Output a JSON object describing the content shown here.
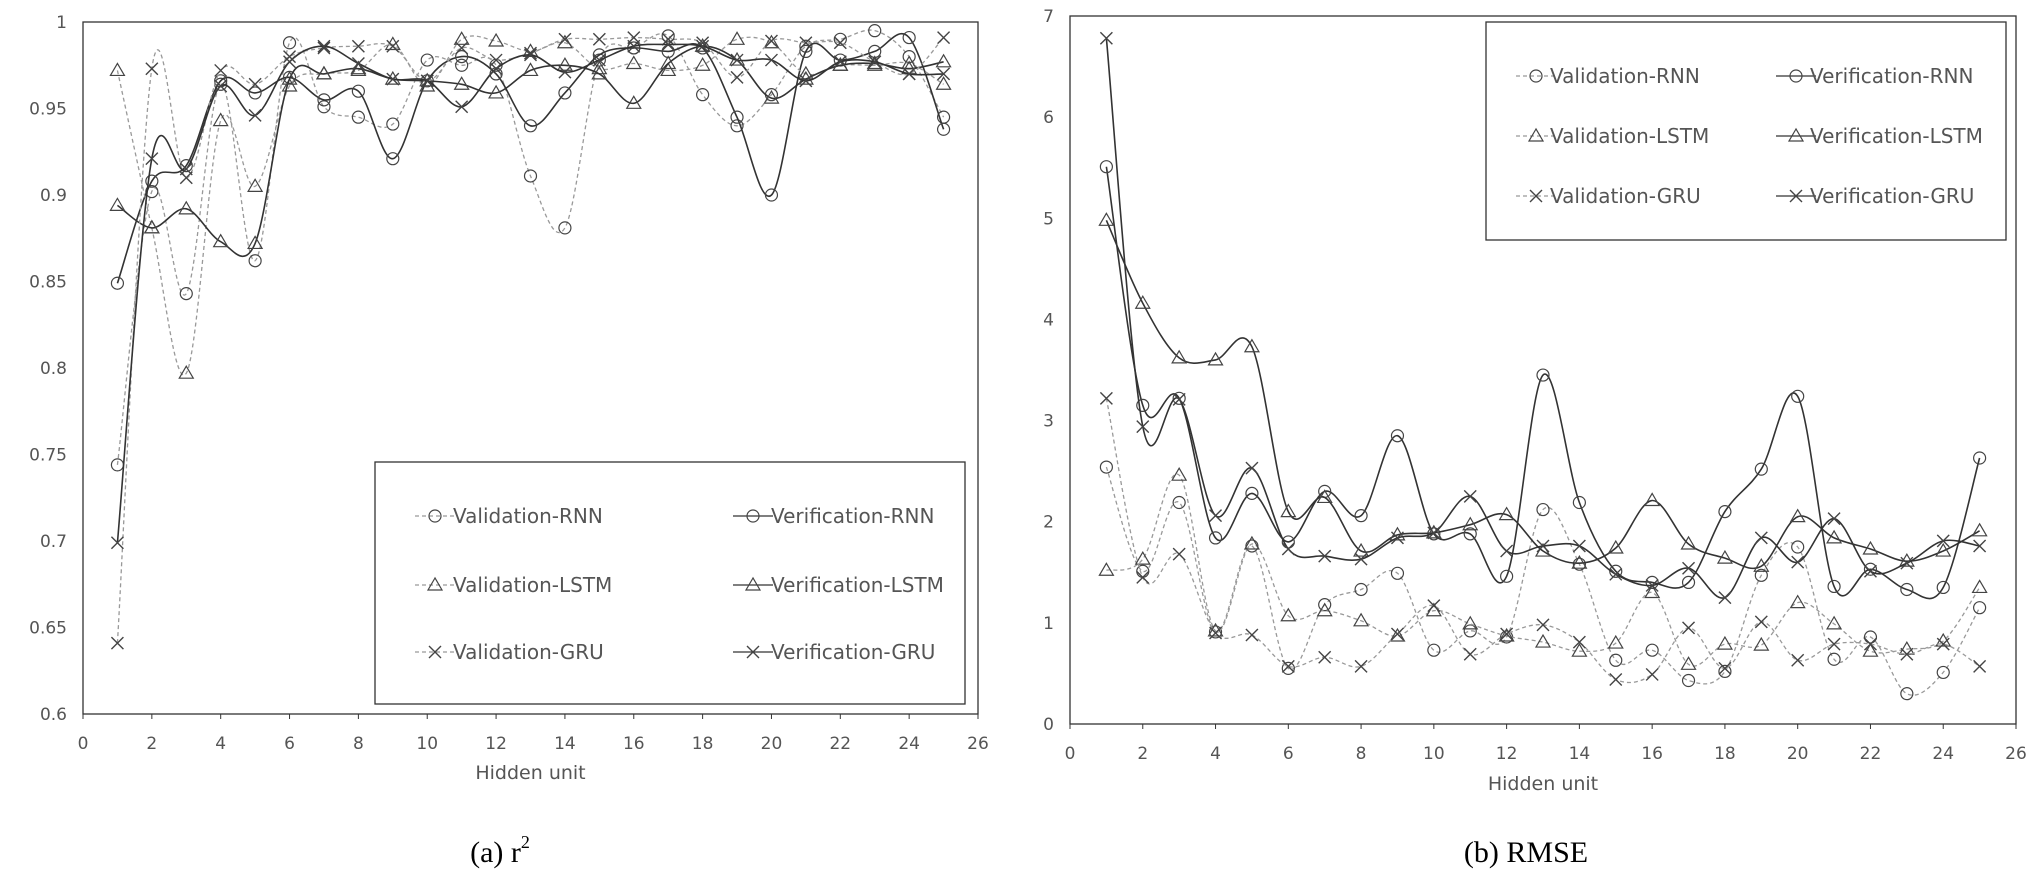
{
  "chart_data": [
    {
      "type": "line",
      "caption": "(a) r",
      "caption_superscript": "2",
      "xlabel": "Hidden unit",
      "ylabel": "",
      "xlim": [
        0,
        26
      ],
      "ylim": [
        0.6,
        1
      ],
      "xticks": [
        "0",
        "2",
        "4",
        "6",
        "8",
        "10",
        "12",
        "14",
        "16",
        "18",
        "20",
        "22",
        "24",
        "26"
      ],
      "yticks": [
        "0.6",
        "0.65",
        "0.7",
        "0.75",
        "0.8",
        "0.85",
        "0.9",
        "0.95",
        "1"
      ],
      "legend_position": "bottom-right",
      "grid": false,
      "x": [
        1,
        2,
        3,
        4,
        5,
        6,
        7,
        8,
        9,
        10,
        11,
        12,
        13,
        14,
        15,
        16,
        17,
        18,
        19,
        20,
        21,
        22,
        23,
        24,
        25
      ],
      "series": [
        {
          "name": "Validation-RNN",
          "marker": "circle",
          "style": "dashed",
          "values": [
            0.744,
            0.902,
            0.843,
            0.964,
            0.862,
            0.988,
            0.951,
            0.945,
            0.941,
            0.978,
            0.975,
            0.975,
            0.911,
            0.881,
            0.978,
            0.985,
            0.992,
            0.958,
            0.94,
            0.958,
            0.986,
            0.99,
            0.995,
            0.98,
            0.945
          ]
        },
        {
          "name": "Verification-RNN",
          "marker": "circle",
          "style": "solid",
          "values": [
            0.849,
            0.908,
            0.917,
            0.966,
            0.959,
            0.968,
            0.955,
            0.96,
            0.921,
            0.966,
            0.98,
            0.97,
            0.94,
            0.959,
            0.981,
            0.985,
            0.983,
            0.985,
            0.945,
            0.9,
            0.983,
            0.978,
            0.983,
            0.991,
            0.938
          ]
        },
        {
          "name": "Validation-LSTM",
          "marker": "triangle",
          "style": "dashed",
          "values": [
            0.972,
            0.881,
            0.797,
            0.943,
            0.905,
            0.963,
            0.97,
            0.972,
            0.987,
            0.963,
            0.99,
            0.989,
            0.983,
            0.988,
            0.973,
            0.976,
            0.972,
            0.975,
            0.99,
            0.988,
            0.97,
            0.975,
            0.975,
            0.976,
            0.964
          ]
        },
        {
          "name": "Verification-LSTM",
          "marker": "triangle",
          "style": "solid",
          "values": [
            0.894,
            0.881,
            0.892,
            0.873,
            0.872,
            0.967,
            0.97,
            0.973,
            0.967,
            0.966,
            0.964,
            0.959,
            0.972,
            0.975,
            0.97,
            0.953,
            0.976,
            0.986,
            0.978,
            0.956,
            0.967,
            0.975,
            0.976,
            0.973,
            0.977
          ]
        },
        {
          "name": "Validation-GRU",
          "marker": "x",
          "style": "dashed",
          "values": [
            0.641,
            0.973,
            0.91,
            0.972,
            0.964,
            0.98,
            0.985,
            0.986,
            0.986,
            0.966,
            0.985,
            0.978,
            0.982,
            0.99,
            0.99,
            0.991,
            0.99,
            0.988,
            0.968,
            0.989,
            0.988,
            0.988,
            0.977,
            0.97,
            0.991
          ]
        },
        {
          "name": "Verification-GRU",
          "marker": "x",
          "style": "solid",
          "values": [
            0.699,
            0.921,
            0.915,
            0.963,
            0.946,
            0.977,
            0.986,
            0.976,
            0.967,
            0.966,
            0.951,
            0.973,
            0.981,
            0.971,
            0.978,
            0.986,
            0.987,
            0.986,
            0.978,
            0.978,
            0.966,
            0.977,
            0.977,
            0.97,
            0.97
          ]
        }
      ]
    },
    {
      "type": "line",
      "caption": "(b) RMSE",
      "xlabel": "Hidden unit",
      "ylabel": "",
      "xlim": [
        0,
        26
      ],
      "ylim": [
        0,
        7
      ],
      "xticks": [
        "0",
        "2",
        "4",
        "6",
        "8",
        "10",
        "12",
        "14",
        "16",
        "18",
        "20",
        "22",
        "24",
        "26"
      ],
      "yticks": [
        "0",
        "1",
        "2",
        "3",
        "4",
        "5",
        "6",
        "7"
      ],
      "legend_position": "top-right",
      "grid": false,
      "x": [
        1,
        2,
        3,
        4,
        5,
        6,
        7,
        8,
        9,
        10,
        11,
        12,
        13,
        14,
        15,
        16,
        17,
        18,
        19,
        20,
        21,
        22,
        23,
        24,
        25
      ],
      "series": [
        {
          "name": "Validation-RNN",
          "marker": "circle",
          "style": "dashed",
          "values": [
            2.54,
            1.51,
            2.19,
            0.91,
            1.76,
            0.55,
            1.18,
            1.33,
            1.49,
            0.73,
            0.92,
            0.86,
            2.12,
            1.58,
            0.63,
            0.73,
            0.43,
            0.52,
            1.47,
            1.75,
            0.64,
            0.86,
            0.3,
            0.51,
            1.15
          ]
        },
        {
          "name": "Verification-RNN",
          "marker": "circle",
          "style": "solid",
          "values": [
            5.51,
            3.15,
            3.22,
            1.84,
            2.28,
            1.8,
            2.3,
            2.06,
            2.85,
            1.88,
            1.88,
            1.46,
            3.45,
            2.19,
            1.51,
            1.4,
            1.4,
            2.1,
            2.52,
            3.24,
            1.36,
            1.53,
            1.33,
            1.35,
            2.63
          ]
        },
        {
          "name": "Validation-LSTM",
          "marker": "triangle",
          "style": "dashed",
          "values": [
            1.52,
            1.63,
            2.46,
            0.92,
            1.78,
            1.07,
            1.12,
            1.02,
            0.87,
            1.12,
            0.99,
            0.87,
            0.81,
            0.72,
            0.8,
            1.3,
            0.59,
            0.79,
            0.78,
            1.2,
            0.99,
            0.72,
            0.74,
            0.82,
            1.35
          ]
        },
        {
          "name": "Verification-LSTM",
          "marker": "triangle",
          "style": "solid",
          "values": [
            4.98,
            4.16,
            3.62,
            3.6,
            3.73,
            2.1,
            2.24,
            1.71,
            1.87,
            1.89,
            1.97,
            2.07,
            1.71,
            1.59,
            1.74,
            2.21,
            1.78,
            1.64,
            1.56,
            2.05,
            1.84,
            1.73,
            1.61,
            1.71,
            1.91
          ]
        },
        {
          "name": "Validation-GRU",
          "marker": "x",
          "style": "dashed",
          "values": [
            3.22,
            1.45,
            1.68,
            0.9,
            0.88,
            0.57,
            0.66,
            0.57,
            0.89,
            1.17,
            0.69,
            0.89,
            0.98,
            0.81,
            0.44,
            0.49,
            0.95,
            0.55,
            1.01,
            0.63,
            0.79,
            0.79,
            0.69,
            0.79,
            0.57
          ]
        },
        {
          "name": "Verification-GRU",
          "marker": "x",
          "style": "solid",
          "values": [
            6.78,
            2.94,
            3.21,
            2.06,
            2.53,
            1.73,
            1.66,
            1.63,
            1.84,
            1.89,
            2.25,
            1.71,
            1.76,
            1.76,
            1.48,
            1.37,
            1.54,
            1.25,
            1.84,
            1.6,
            2.03,
            1.51,
            1.59,
            1.81,
            1.76
          ]
        }
      ]
    }
  ]
}
